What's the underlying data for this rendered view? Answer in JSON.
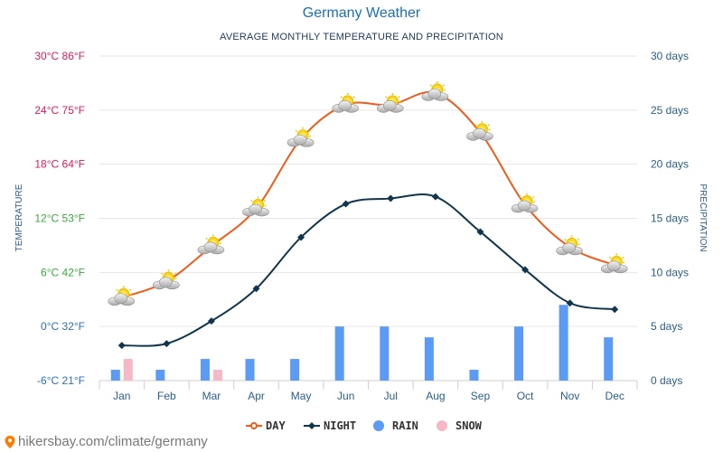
{
  "page": {
    "title": "Germany Weather",
    "subtitle": "AVERAGE MONTHLY TEMPERATURE AND PRECIPITATION",
    "source": "hikersbay.com/climate/germany"
  },
  "chart_data": {
    "type": "line",
    "title": "Germany Weather",
    "subtitle": "AVERAGE MONTHLY TEMPERATURE AND PRECIPITATION",
    "categories": [
      "Jan",
      "Feb",
      "Mar",
      "Apr",
      "May",
      "Jun",
      "Jul",
      "Aug",
      "Sep",
      "Oct",
      "Nov",
      "Dec"
    ],
    "ylabel_left": "TEMPERATURE",
    "ylabel_right": "PRECIPITATION",
    "ylim_left": [
      -6,
      30
    ],
    "ylim_right": [
      0,
      30
    ],
    "left_ticks": [
      {
        "value": 30,
        "label": "30°C 86°F",
        "color": "#e0195e"
      },
      {
        "value": 24,
        "label": "24°C 75°F",
        "color": "#e0195e"
      },
      {
        "value": 18,
        "label": "18°C 64°F",
        "color": "#e0195e"
      },
      {
        "value": 12,
        "label": "12°C 53°F",
        "color": "#3aab3a"
      },
      {
        "value": 6,
        "label": "6°C 42°F",
        "color": "#3aab3a"
      },
      {
        "value": 0,
        "label": "0°C 32°F",
        "color": "#2a6fc4"
      },
      {
        "value": -6,
        "label": "-6°C 21°F",
        "color": "#2a6fc4"
      }
    ],
    "right_ticks": [
      {
        "value": 30,
        "label": "30 days"
      },
      {
        "value": 25,
        "label": "25 days"
      },
      {
        "value": 20,
        "label": "20 days"
      },
      {
        "value": 15,
        "label": "15 days"
      },
      {
        "value": 10,
        "label": "10 days"
      },
      {
        "value": 5,
        "label": "5 days"
      },
      {
        "value": 0,
        "label": "0 days"
      }
    ],
    "grid": true,
    "legend_position": "bottom",
    "series": [
      {
        "name": "DAY",
        "kind": "line",
        "axis": "left",
        "color": "#f05a1a",
        "marker": "weather-icon",
        "values": [
          3.2,
          5.0,
          8.9,
          13.1,
          20.8,
          24.6,
          24.6,
          25.9,
          21.5,
          13.5,
          8.8,
          6.8
        ]
      },
      {
        "name": "NIGHT",
        "kind": "line",
        "axis": "left",
        "color": "#10364f",
        "marker": "diamond",
        "values": [
          -2.1,
          -1.9,
          0.6,
          4.2,
          9.9,
          13.6,
          14.2,
          14.4,
          10.5,
          6.3,
          2.6,
          1.9
        ]
      },
      {
        "name": "RAIN",
        "kind": "bar",
        "axis": "right",
        "color": "#5b9bf5",
        "values": [
          1,
          1,
          2,
          2,
          2,
          5,
          5,
          4,
          1,
          5,
          7,
          4
        ]
      },
      {
        "name": "SNOW",
        "kind": "bar",
        "axis": "right",
        "color": "#f5b8c6",
        "values": [
          2,
          0,
          1,
          0,
          0,
          0,
          0,
          0,
          0,
          0,
          0,
          0
        ]
      }
    ]
  }
}
